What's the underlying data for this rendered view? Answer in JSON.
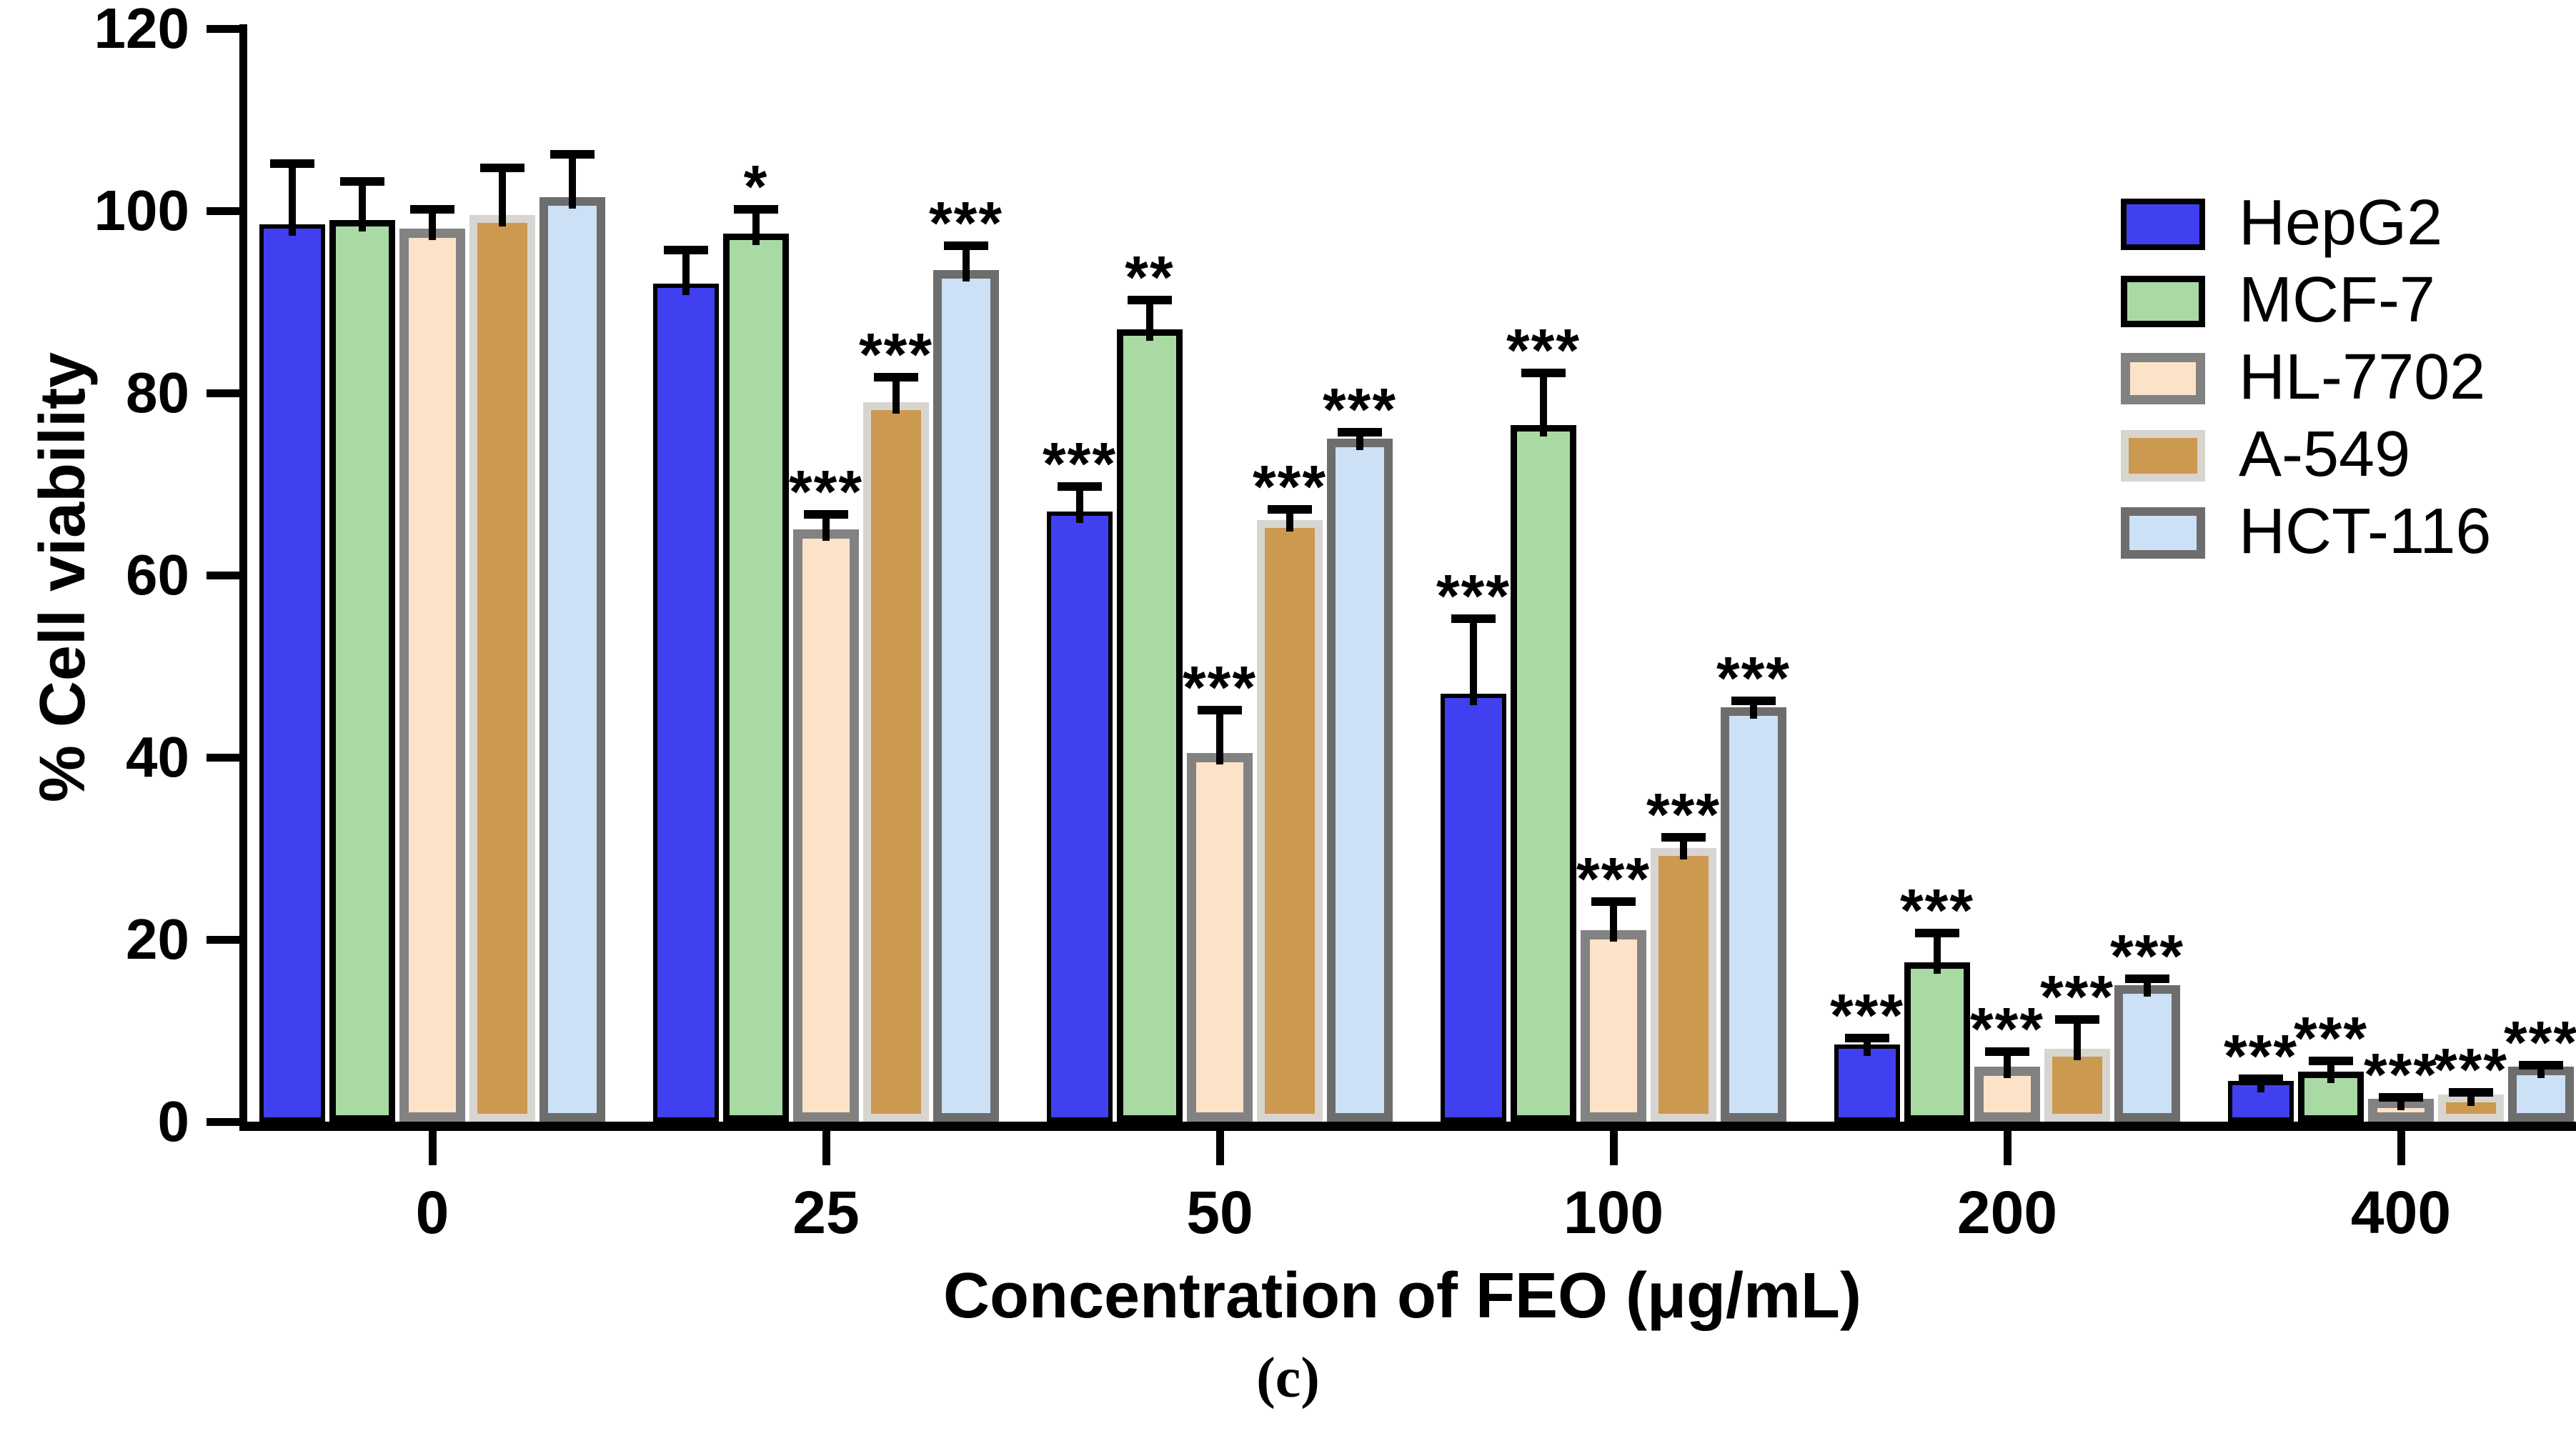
{
  "figure": {
    "ylabel": "% Cell viability",
    "xlabel": "Concentration of FEO (μg/mL)",
    "caption": "(c)"
  },
  "chart_data": {
    "type": "bar",
    "grouped": true,
    "title": "",
    "xlabel": "Concentration of FEO (μg/mL)",
    "ylabel": "% Cell viability",
    "categories": [
      "0",
      "25",
      "50",
      "100",
      "200",
      "400"
    ],
    "y_ticks": [
      0,
      20,
      40,
      60,
      80,
      100,
      120
    ],
    "ylim": [
      0,
      120
    ],
    "grid": false,
    "legend_position": "upper right",
    "error_bars": true,
    "series": [
      {
        "name": "HepG2",
        "fill": "#4040F0",
        "border": "#000000",
        "border_width": 6,
        "values": [
          98.5,
          92,
          67,
          47,
          8.5,
          4.5
        ],
        "errors": [
          7,
          4,
          3,
          8.5,
          1,
          0.5
        ],
        "significance": [
          "",
          "",
          "***",
          "***",
          "***",
          "***"
        ]
      },
      {
        "name": "MCF-7",
        "fill": "#A9DAA3",
        "border": "#000000",
        "border_width": 9,
        "values": [
          99,
          97.5,
          87,
          76.5,
          17.5,
          5.5
        ],
        "errors": [
          4.5,
          3,
          3.5,
          6,
          3.5,
          1.5
        ],
        "significance": [
          "",
          "*",
          "**",
          "***",
          "***",
          "***"
        ]
      },
      {
        "name": "HL-7702",
        "fill": "#FCE3C8",
        "border": "#828282",
        "border_width": 13,
        "values": [
          98,
          65,
          40.5,
          21,
          6,
          2.5
        ],
        "errors": [
          2.5,
          2,
          5,
          3.5,
          2,
          0.5
        ],
        "significance": [
          "",
          "***",
          "***",
          "***",
          "***",
          "***"
        ]
      },
      {
        "name": "A-549",
        "fill": "#CC9950",
        "border": "#D8D5D1",
        "border_width": 11,
        "values": [
          99.5,
          79,
          66,
          30,
          8,
          3
        ],
        "errors": [
          5.5,
          3,
          1.5,
          1.5,
          3.5,
          0.5
        ],
        "significance": [
          "",
          "***",
          "***",
          "***",
          "***",
          "***"
        ]
      },
      {
        "name": "HCT-116",
        "fill": "#CCE0F6",
        "border": "#6D6D6D",
        "border_width": 12,
        "values": [
          101.5,
          93.5,
          75,
          45.5,
          15,
          6
        ],
        "errors": [
          5,
          3,
          1,
          1,
          1,
          0.5
        ],
        "significance": [
          "",
          "***",
          "***",
          "***",
          "***",
          "***"
        ]
      }
    ]
  }
}
